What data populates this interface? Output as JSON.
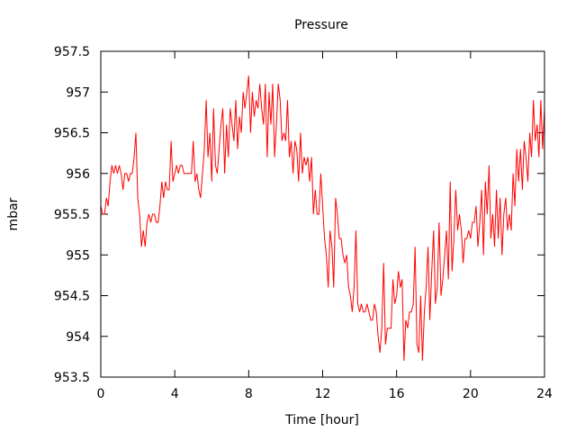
{
  "chart_data": {
    "type": "line",
    "title": "Pressure",
    "xlabel": "Time [hour]",
    "ylabel": "mbar",
    "xlim": [
      0,
      24
    ],
    "ylim": [
      953.5,
      957.5
    ],
    "xticks": [
      0,
      4,
      8,
      12,
      16,
      20,
      24
    ],
    "yticks": [
      953.5,
      954,
      954.5,
      955,
      955.5,
      956,
      956.5,
      957,
      957.5
    ],
    "ytick_labels": [
      "953.5",
      "954",
      "954.5",
      "955",
      "955.5",
      "956",
      "956.5",
      "957",
      "957.5"
    ],
    "grid": false,
    "legend": "none",
    "series": [
      {
        "color": "#ff0000",
        "points": [
          [
            0.0,
            955.6
          ],
          [
            0.1,
            955.5
          ],
          [
            0.2,
            955.5
          ],
          [
            0.3,
            955.7
          ],
          [
            0.4,
            955.6
          ],
          [
            0.5,
            955.9
          ],
          [
            0.6,
            956.1
          ],
          [
            0.7,
            956.0
          ],
          [
            0.8,
            956.1
          ],
          [
            0.9,
            956.0
          ],
          [
            1.0,
            956.1
          ],
          [
            1.1,
            956.0
          ],
          [
            1.2,
            955.8
          ],
          [
            1.3,
            956.0
          ],
          [
            1.4,
            956.0
          ],
          [
            1.5,
            955.9
          ],
          [
            1.6,
            956.0
          ],
          [
            1.7,
            956.0
          ],
          [
            1.8,
            956.2
          ],
          [
            1.9,
            956.5
          ],
          [
            2.0,
            955.7
          ],
          [
            2.1,
            955.5
          ],
          [
            2.2,
            955.1
          ],
          [
            2.3,
            955.3
          ],
          [
            2.4,
            955.1
          ],
          [
            2.5,
            955.4
          ],
          [
            2.6,
            955.5
          ],
          [
            2.7,
            955.4
          ],
          [
            2.8,
            955.5
          ],
          [
            2.9,
            955.5
          ],
          [
            3.0,
            955.4
          ],
          [
            3.1,
            955.4
          ],
          [
            3.2,
            955.6
          ],
          [
            3.3,
            955.9
          ],
          [
            3.4,
            955.7
          ],
          [
            3.5,
            955.9
          ],
          [
            3.6,
            955.8
          ],
          [
            3.7,
            955.8
          ],
          [
            3.8,
            956.4
          ],
          [
            3.9,
            955.9
          ],
          [
            4.0,
            956.0
          ],
          [
            4.1,
            956.1
          ],
          [
            4.2,
            956.0
          ],
          [
            4.3,
            956.1
          ],
          [
            4.4,
            956.1
          ],
          [
            4.5,
            956.0
          ],
          [
            4.6,
            956.0
          ],
          [
            4.7,
            956.0
          ],
          [
            4.8,
            956.0
          ],
          [
            4.9,
            956.0
          ],
          [
            5.0,
            956.4
          ],
          [
            5.1,
            955.9
          ],
          [
            5.2,
            956.0
          ],
          [
            5.3,
            955.8
          ],
          [
            5.4,
            955.7
          ],
          [
            5.5,
            956.0
          ],
          [
            5.6,
            956.3
          ],
          [
            5.7,
            956.9
          ],
          [
            5.8,
            956.2
          ],
          [
            5.9,
            956.5
          ],
          [
            6.0,
            955.9
          ],
          [
            6.1,
            956.8
          ],
          [
            6.2,
            956.1
          ],
          [
            6.3,
            956.0
          ],
          [
            6.4,
            956.3
          ],
          [
            6.5,
            956.6
          ],
          [
            6.6,
            956.8
          ],
          [
            6.7,
            956.0
          ],
          [
            6.8,
            956.6
          ],
          [
            6.9,
            956.2
          ],
          [
            7.0,
            956.8
          ],
          [
            7.1,
            956.6
          ],
          [
            7.2,
            956.4
          ],
          [
            7.3,
            956.9
          ],
          [
            7.4,
            956.3
          ],
          [
            7.5,
            956.7
          ],
          [
            7.6,
            956.5
          ],
          [
            7.7,
            957.0
          ],
          [
            7.8,
            956.8
          ],
          [
            7.9,
            957.0
          ],
          [
            8.0,
            957.2
          ],
          [
            8.1,
            956.5
          ],
          [
            8.2,
            957.0
          ],
          [
            8.3,
            956.7
          ],
          [
            8.4,
            956.9
          ],
          [
            8.5,
            956.8
          ],
          [
            8.6,
            957.1
          ],
          [
            8.7,
            956.8
          ],
          [
            8.8,
            956.6
          ],
          [
            8.9,
            957.1
          ],
          [
            9.0,
            956.2
          ],
          [
            9.1,
            957.0
          ],
          [
            9.2,
            956.6
          ],
          [
            9.3,
            957.1
          ],
          [
            9.4,
            956.2
          ],
          [
            9.5,
            956.6
          ],
          [
            9.6,
            957.1
          ],
          [
            9.7,
            956.9
          ],
          [
            9.8,
            956.4
          ],
          [
            9.9,
            956.5
          ],
          [
            10.0,
            956.4
          ],
          [
            10.1,
            956.9
          ],
          [
            10.2,
            956.2
          ],
          [
            10.3,
            956.4
          ],
          [
            10.4,
            956.0
          ],
          [
            10.5,
            956.4
          ],
          [
            10.6,
            956.3
          ],
          [
            10.7,
            955.9
          ],
          [
            10.8,
            956.5
          ],
          [
            10.9,
            956.0
          ],
          [
            11.0,
            956.2
          ],
          [
            11.1,
            956.1
          ],
          [
            11.2,
            956.2
          ],
          [
            11.3,
            955.9
          ],
          [
            11.4,
            956.2
          ],
          [
            11.5,
            955.5
          ],
          [
            11.6,
            955.8
          ],
          [
            11.7,
            955.5
          ],
          [
            11.8,
            955.5
          ],
          [
            11.9,
            956.0
          ],
          [
            12.0,
            955.6
          ],
          [
            12.1,
            955.2
          ],
          [
            12.2,
            955.0
          ],
          [
            12.3,
            954.6
          ],
          [
            12.4,
            955.3
          ],
          [
            12.5,
            955.1
          ],
          [
            12.6,
            954.6
          ],
          [
            12.7,
            955.7
          ],
          [
            12.8,
            955.5
          ],
          [
            12.9,
            955.2
          ],
          [
            13.0,
            955.2
          ],
          [
            13.1,
            955.0
          ],
          [
            13.2,
            954.9
          ],
          [
            13.3,
            955.0
          ],
          [
            13.4,
            954.6
          ],
          [
            13.5,
            954.5
          ],
          [
            13.6,
            954.3
          ],
          [
            13.7,
            954.6
          ],
          [
            13.8,
            955.3
          ],
          [
            13.9,
            954.4
          ],
          [
            14.0,
            954.3
          ],
          [
            14.1,
            954.4
          ],
          [
            14.2,
            954.3
          ],
          [
            14.3,
            954.3
          ],
          [
            14.4,
            954.4
          ],
          [
            14.5,
            954.3
          ],
          [
            14.6,
            954.2
          ],
          [
            14.7,
            954.2
          ],
          [
            14.8,
            954.4
          ],
          [
            14.9,
            954.3
          ],
          [
            15.0,
            954.0
          ],
          [
            15.1,
            953.8
          ],
          [
            15.2,
            954.1
          ],
          [
            15.3,
            954.9
          ],
          [
            15.4,
            953.9
          ],
          [
            15.5,
            954.1
          ],
          [
            15.6,
            954.1
          ],
          [
            15.7,
            954.1
          ],
          [
            15.8,
            954.7
          ],
          [
            15.9,
            954.4
          ],
          [
            16.0,
            954.5
          ],
          [
            16.1,
            954.8
          ],
          [
            16.2,
            954.6
          ],
          [
            16.3,
            954.7
          ],
          [
            16.4,
            953.7
          ],
          [
            16.5,
            954.2
          ],
          [
            16.6,
            954.1
          ],
          [
            16.7,
            954.3
          ],
          [
            16.8,
            954.3
          ],
          [
            16.9,
            954.4
          ],
          [
            17.0,
            955.1
          ],
          [
            17.1,
            953.9
          ],
          [
            17.2,
            953.8
          ],
          [
            17.3,
            954.5
          ],
          [
            17.4,
            953.7
          ],
          [
            17.5,
            954.3
          ],
          [
            17.6,
            954.6
          ],
          [
            17.7,
            955.1
          ],
          [
            17.8,
            954.2
          ],
          [
            17.9,
            954.8
          ],
          [
            18.0,
            955.3
          ],
          [
            18.1,
            954.4
          ],
          [
            18.2,
            954.6
          ],
          [
            18.3,
            955.4
          ],
          [
            18.4,
            954.5
          ],
          [
            18.5,
            954.7
          ],
          [
            18.6,
            955.0
          ],
          [
            18.7,
            955.3
          ],
          [
            18.8,
            954.7
          ],
          [
            18.9,
            955.9
          ],
          [
            19.0,
            954.8
          ],
          [
            19.1,
            955.2
          ],
          [
            19.2,
            955.8
          ],
          [
            19.3,
            955.3
          ],
          [
            19.4,
            955.5
          ],
          [
            19.5,
            955.3
          ],
          [
            19.6,
            954.9
          ],
          [
            19.7,
            955.2
          ],
          [
            19.8,
            955.2
          ],
          [
            19.9,
            955.3
          ],
          [
            20.0,
            955.2
          ],
          [
            20.1,
            955.4
          ],
          [
            20.2,
            955.4
          ],
          [
            20.3,
            955.6
          ],
          [
            20.4,
            955.1
          ],
          [
            20.5,
            955.4
          ],
          [
            20.6,
            955.8
          ],
          [
            20.7,
            955.0
          ],
          [
            20.8,
            955.9
          ],
          [
            20.9,
            955.5
          ],
          [
            21.0,
            956.1
          ],
          [
            21.1,
            955.2
          ],
          [
            21.2,
            955.5
          ],
          [
            21.3,
            955.1
          ],
          [
            21.4,
            955.8
          ],
          [
            21.5,
            955.2
          ],
          [
            21.6,
            955.7
          ],
          [
            21.7,
            955.0
          ],
          [
            21.8,
            955.5
          ],
          [
            21.9,
            955.7
          ],
          [
            22.0,
            955.3
          ],
          [
            22.1,
            955.5
          ],
          [
            22.2,
            955.3
          ],
          [
            22.3,
            956.0
          ],
          [
            22.4,
            955.6
          ],
          [
            22.5,
            956.3
          ],
          [
            22.6,
            955.9
          ],
          [
            22.7,
            956.3
          ],
          [
            22.8,
            955.8
          ],
          [
            22.9,
            956.4
          ],
          [
            23.0,
            956.2
          ],
          [
            23.1,
            955.9
          ],
          [
            23.2,
            956.5
          ],
          [
            23.3,
            956.2
          ],
          [
            23.4,
            956.9
          ],
          [
            23.5,
            956.4
          ],
          [
            23.6,
            956.6
          ],
          [
            23.7,
            956.2
          ],
          [
            23.8,
            956.9
          ],
          [
            23.9,
            956.3
          ],
          [
            24.0,
            956.8
          ]
        ]
      }
    ]
  }
}
